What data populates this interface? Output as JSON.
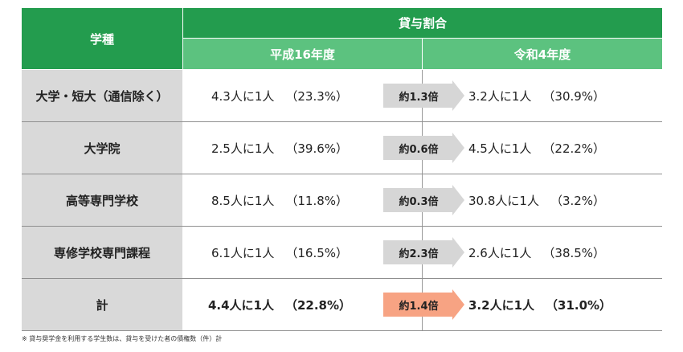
{
  "header": {
    "row_header": "学種",
    "group_title": "貸与割合",
    "col_a": "平成16年度",
    "col_b": "令和4年度"
  },
  "rows": [
    {
      "label": "大学・短大（通信除く）",
      "a_ratio": "4.3人に1人",
      "a_pct": "（23.3%）",
      "change": "約1.3倍",
      "b_ratio": "3.2人に1人",
      "b_pct": "（30.9%）"
    },
    {
      "label": "大学院",
      "a_ratio": "2.5人に1人",
      "a_pct": "（39.6%）",
      "change": "約0.6倍",
      "b_ratio": "4.5人に1人",
      "b_pct": "（22.2%）"
    },
    {
      "label": "高等専門学校",
      "a_ratio": "8.5人に1人",
      "a_pct": "（11.8%）",
      "change": "約0.3倍",
      "b_ratio": "30.8人に1人",
      "b_pct": "（3.2%）"
    },
    {
      "label": "専修学校専門課程",
      "a_ratio": "6.1人に1人",
      "a_pct": "（16.5%）",
      "change": "約2.3倍",
      "b_ratio": "2.6人に1人",
      "b_pct": "（38.5%）"
    },
    {
      "label": "計",
      "a_ratio": "4.4人に1人",
      "a_pct": "（22.8%）",
      "change": "約1.4倍",
      "b_ratio": "3.2人に1人",
      "b_pct": "（31.0%）"
    }
  ],
  "note": "※ 貸与奨学金を利用する学生数は、貸与を受けた者の債権数（件）計",
  "colors": {
    "header_green": "#239c4e",
    "subheader_green": "#5cc27f",
    "label_gray": "#d9d9d9",
    "arrow_gray": "#d6d6d6",
    "arrow_highlight": "#f7a383"
  }
}
